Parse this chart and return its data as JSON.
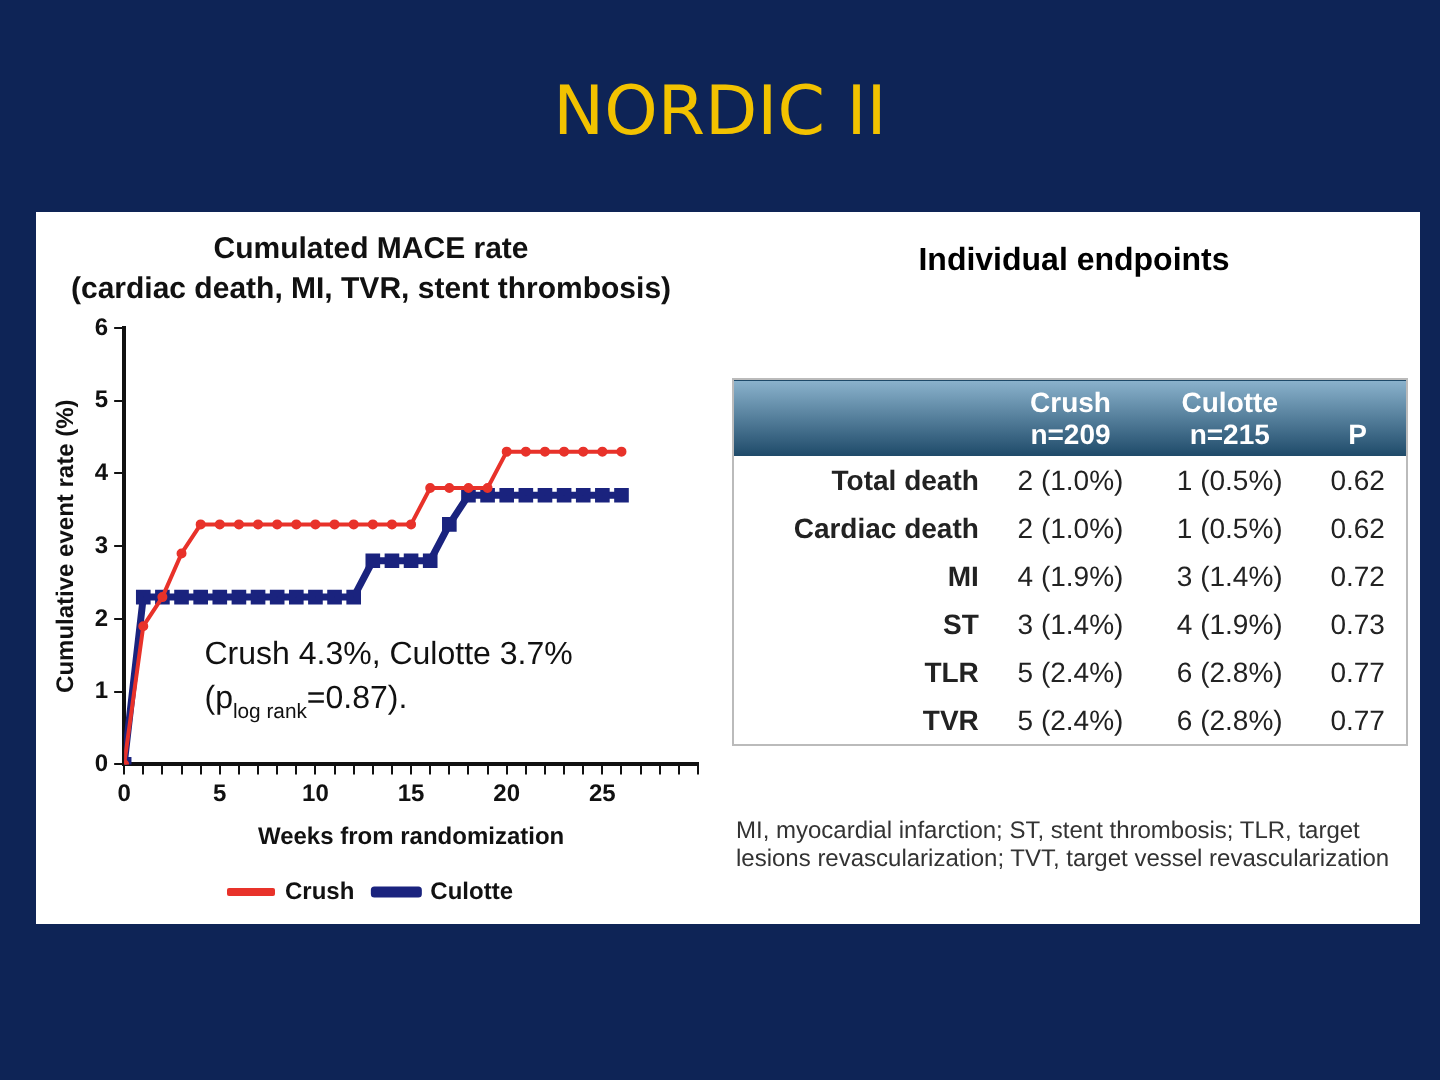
{
  "chart_data": [
    {
      "type": "line",
      "title": "Cumulated MACE rate",
      "subtitle": "(cardiac death, MI, TVR, stent thrombosis)",
      "xlabel": "Weeks from randomization",
      "ylabel": "Cumulative event rate (%)",
      "annotations": [
        "NORDIC II",
        "Crush 4.3%, Culotte 3.7%",
        "(p$_{log rank}$=0.87)."
      ],
      "x": [
        0,
        1,
        2,
        3,
        4,
        5,
        6,
        7,
        8,
        9,
        10,
        11,
        12,
        13,
        14,
        15,
        16,
        17,
        18,
        19,
        20,
        21,
        22,
        23,
        24,
        25,
        26
      ],
      "series": [
        {
          "name": "Crush",
          "color": "#e8322a",
          "marker": "circle",
          "values": [
            0,
            1.9,
            2.3,
            2.9,
            3.3,
            3.3,
            3.3,
            3.3,
            3.3,
            3.3,
            3.3,
            3.3,
            3.3,
            3.3,
            3.3,
            3.3,
            3.8,
            3.8,
            3.8,
            3.8,
            4.3,
            4.3,
            4.3,
            4.3,
            4.3,
            4.3,
            4.3
          ]
        },
        {
          "name": "Culotte",
          "color": "#1a237e",
          "marker": "square",
          "values": [
            0,
            2.3,
            2.3,
            2.3,
            2.3,
            2.3,
            2.3,
            2.3,
            2.3,
            2.3,
            2.3,
            2.3,
            2.3,
            2.8,
            2.8,
            2.8,
            2.8,
            3.3,
            3.7,
            3.7,
            3.7,
            3.7,
            3.7,
            3.7,
            3.7,
            3.7,
            3.7
          ]
        }
      ],
      "xlim": [
        0,
        30
      ],
      "xticks": [
        0,
        {
          "value": 1,
          "label": null
        },
        {
          "value": 2,
          "label": null
        },
        {
          "value": 3,
          "label": null
        },
        {
          "value": 4,
          "label": null
        },
        5,
        {
          "value": 6,
          "label": null
        },
        {
          "value": 7,
          "label": null
        },
        {
          "value": 8,
          "label": null
        },
        {
          "value": 9,
          "label": null
        },
        10,
        {
          "value": 11,
          "label": null
        },
        {
          "value": 12,
          "label": null
        },
        {
          "value": 13,
          "label": null
        },
        {
          "value": 14,
          "label": null
        },
        15,
        {
          "value": 16,
          "label": null
        },
        {
          "value": 17,
          "label": null
        },
        {
          "value": 18,
          "label": null
        },
        {
          "value": 19,
          "label": null
        },
        20,
        {
          "value": 21,
          "label": null
        },
        {
          "value": 22,
          "label": null
        },
        {
          "value": 23,
          "label": null
        },
        {
          "value": 24,
          "label": null
        },
        25,
        {
          "value": 26,
          "label": null
        },
        {
          "value": 27,
          "label": null
        },
        {
          "value": 28,
          "label": null
        },
        {
          "value": 29,
          "label": null
        },
        {
          "value": 30,
          "label": null
        }
      ],
      "ylim": [
        0,
        6
      ],
      "yticks": [
        0,
        1,
        2,
        3,
        4,
        5,
        6
      ],
      "grid": false,
      "legend": "bottom",
      "line_style": "solid"
    },
    {
      "type": "other",
      "title": "Individual endpoints",
      "categories": [
        "Crush\nn=209",
        "Culotte\nn=215",
        "P"
      ],
      "y_categories": [
        "Total death",
        "Cardiac death",
        "MI",
        "ST",
        "TLR",
        "TVR"
      ],
      "cell_labels": [
        [
          "2 (1.0%)",
          "1 (0.5%)",
          "0.62"
        ],
        [
          "2 (1.0%)",
          "1 (0.5%)",
          "0.62"
        ],
        [
          "4 (1.9%)",
          "3 (1.4%)",
          "0.72"
        ],
        [
          "3 (1.4%)",
          "4 (1.9%)",
          "0.73"
        ],
        [
          "5 (2.4%)",
          "6 (2.8%)",
          "0.77"
        ],
        [
          "5 (2.4%)",
          "6 (2.8%)",
          "0.77"
        ]
      ],
      "annotations": [
        "MI, myocardial infarction; ST, stent thrombosis; TLR, target lesions revascularization; TVT, target vessel revascularization"
      ]
    }
  ]
}
